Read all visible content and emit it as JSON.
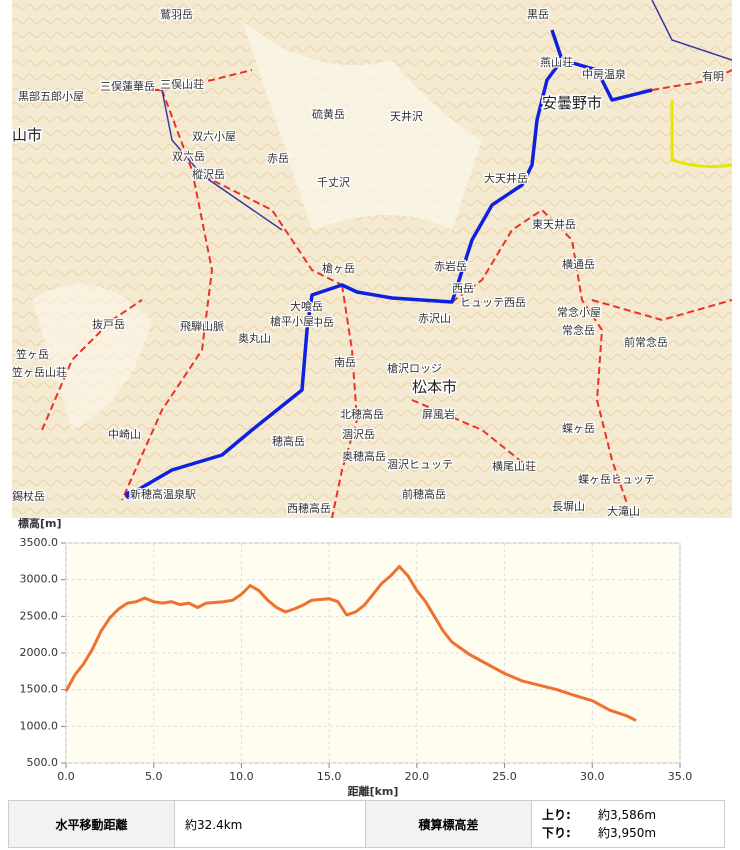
{
  "map": {
    "labels": [
      "黒岳",
      "燕山荘",
      "中房温泉",
      "有明",
      "安曇野市",
      "三俣蓮華岳",
      "三俣山荘",
      "鷲羽岳",
      "黒部五郎小屋",
      "山市",
      "双六岳",
      "双六小屋",
      "樅沢岳",
      "硫黄岳",
      "赤岳",
      "千丈沢",
      "天井沢",
      "大天井岳",
      "東天井岳",
      "横通岳",
      "常念小屋",
      "常念岳",
      "前常念岳",
      "赤岩岳",
      "西岳",
      "ヒュッテ西岳",
      "赤沢山",
      "槍ヶ岳",
      "大喰岳",
      "中岳",
      "南岳",
      "槍平小屋",
      "奥丸山",
      "飛騨山脈",
      "抜戸岳",
      "笠ヶ岳",
      "笠ヶ岳山荘",
      "中崎山",
      "錫杖岳",
      "新穂高温泉駅",
      "槍沢ロッジ",
      "松本市",
      "北穂高岳",
      "涸沢岳",
      "涸沢ヒュッテ",
      "奥穂高岳",
      "穂高岳",
      "前穂高岳",
      "西穂高岳",
      "横尾山荘",
      "蝶ヶ岳",
      "蝶ヶ岳ヒュッテ",
      "長塀山",
      "大滝山",
      "屏風岩"
    ]
  },
  "chart_data": {
    "type": "line",
    "ylabel": "標高[m]",
    "xlabel": "距離[km]",
    "color": "#f07030",
    "grid": true,
    "x": [
      0,
      0.5,
      1,
      1.5,
      2,
      2.5,
      3,
      3.5,
      4,
      4.5,
      5,
      5.5,
      6,
      6.5,
      7,
      7.5,
      8,
      9,
      9.5,
      10,
      10.5,
      11,
      11.5,
      12,
      12.5,
      13,
      13.5,
      14,
      15,
      15.5,
      16,
      16.5,
      17,
      17.5,
      18,
      18.5,
      19,
      19.5,
      20,
      20.5,
      21,
      21.5,
      22,
      23,
      24,
      25,
      26,
      27,
      28,
      29,
      30,
      31,
      32,
      32.5
    ],
    "values": [
      1480,
      1700,
      1850,
      2050,
      2300,
      2480,
      2600,
      2680,
      2700,
      2750,
      2700,
      2680,
      2700,
      2660,
      2680,
      2620,
      2680,
      2700,
      2720,
      2800,
      2920,
      2850,
      2720,
      2620,
      2560,
      2600,
      2650,
      2720,
      2740,
      2700,
      2520,
      2560,
      2650,
      2800,
      2950,
      3050,
      3180,
      3050,
      2850,
      2700,
      2500,
      2300,
      2150,
      1980,
      1850,
      1720,
      1620,
      1560,
      1500,
      1420,
      1350,
      1220,
      1140,
      1080
    ],
    "xlim": [
      0,
      35
    ],
    "ylim": [
      500,
      3500
    ],
    "xticks": [
      {
        "value": 0,
        "label": "0.0"
      },
      {
        "value": 5,
        "label": "5.0"
      },
      {
        "value": 10,
        "label": "10.0"
      },
      {
        "value": 15,
        "label": "15.0"
      },
      {
        "value": 20,
        "label": "20.0"
      },
      {
        "value": 25,
        "label": "25.0"
      },
      {
        "value": 30,
        "label": "30.0"
      },
      {
        "value": 35,
        "label": "35.0"
      }
    ],
    "yticks": [
      {
        "value": 500,
        "label": "500.0"
      },
      {
        "value": 1000,
        "label": "1000.0"
      },
      {
        "value": 1500,
        "label": "1500.0"
      },
      {
        "value": 2000,
        "label": "2000.0"
      },
      {
        "value": 2500,
        "label": "2500.0"
      },
      {
        "value": 3000,
        "label": "3000.0"
      },
      {
        "value": 3500,
        "label": "3500.0"
      }
    ]
  },
  "table": {
    "distance_label": "水平移動距離",
    "distance": "約32.4km",
    "elev_label": "積算標高差",
    "up_label": "上り:",
    "up": "約3,586m",
    "down_label": "下り:",
    "down": "約3,950m"
  }
}
